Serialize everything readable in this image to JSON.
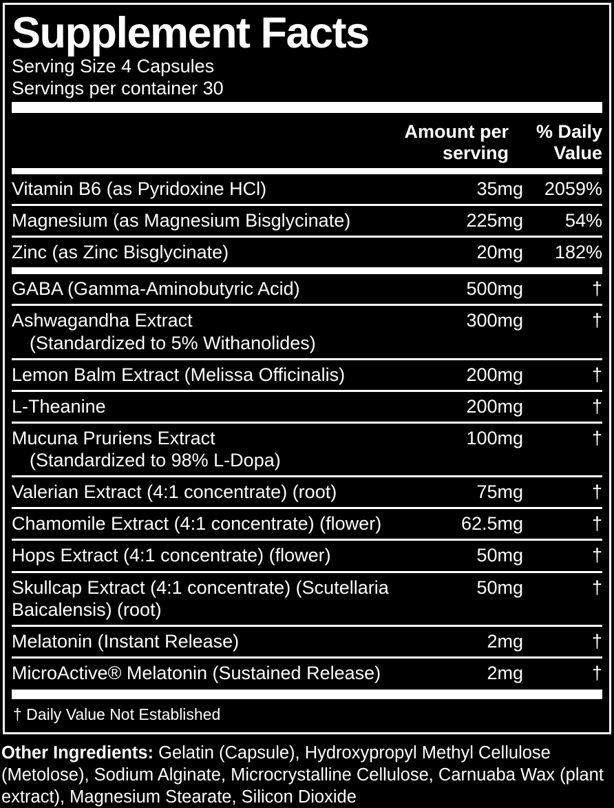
{
  "label": {
    "title": "Supplement Facts",
    "serving_size": "Serving Size 4 Capsules",
    "servings_per_container": "Servings per container 30",
    "columns": {
      "amount": "Amount per serving",
      "daily_value": "% Daily Value"
    },
    "rows": [
      {
        "name": "Vitamin B6 (as Pyridoxine HCl)",
        "sub": "",
        "amount": "35mg",
        "dv": "2059%"
      },
      {
        "name": "Magnesium (as Magnesium Bisglycinate)",
        "sub": "",
        "amount": "225mg",
        "dv": "54%"
      },
      {
        "name": "Zinc (as Zinc Bisglycinate)",
        "sub": "",
        "amount": "20mg",
        "dv": "182%"
      },
      {
        "name": "GABA (Gamma-Aminobutyric Acid)",
        "sub": "",
        "amount": "500mg",
        "dv": "†"
      },
      {
        "name": "Ashwagandha Extract",
        "sub": "(Standardized to 5% Withanolides)",
        "amount": "300mg",
        "dv": "†"
      },
      {
        "name": "Lemon Balm Extract (Melissa Officinalis)",
        "sub": "",
        "amount": "200mg",
        "dv": "†"
      },
      {
        "name": "L-Theanine",
        "sub": "",
        "amount": "200mg",
        "dv": "†"
      },
      {
        "name": "Mucuna Pruriens Extract",
        "sub": "(Standardized to 98% L-Dopa)",
        "amount": "100mg",
        "dv": "†"
      },
      {
        "name": "Valerian Extract (4:1 concentrate) (root)",
        "sub": "",
        "amount": "75mg",
        "dv": "†"
      },
      {
        "name": "Chamomile Extract (4:1 concentrate) (flower)",
        "sub": "",
        "amount": "62.5mg",
        "dv": "†"
      },
      {
        "name": "Hops Extract (4:1 concentrate) (flower)",
        "sub": "",
        "amount": "50mg",
        "dv": "†"
      },
      {
        "name": "Skullcap Extract (4:1 concentrate) (Scutellaria",
        "sub": "Baicalensis) (root)",
        "amount": "50mg",
        "dv": "†"
      },
      {
        "name": "Melatonin (Instant Release)",
        "sub": "",
        "amount": "2mg",
        "dv": "†"
      },
      {
        "name": "MicroActive® Melatonin (Sustained Release)",
        "sub": "",
        "amount": "2mg",
        "dv": "†"
      }
    ],
    "footnote": "† Daily Value Not Established",
    "other_ingredients_label": "Other Ingredients:",
    "other_ingredients_text": " Gelatin (Capsule), Hydroxypropyl Methyl Cellulose (Metolose), Sodium Alginate, Microcrystalline Cellulose, Carnuaba Wax (plant extract), Magnesium Stearate, Silicon Dioxide",
    "colors": {
      "background": "#000000",
      "foreground": "#ffffff"
    }
  }
}
